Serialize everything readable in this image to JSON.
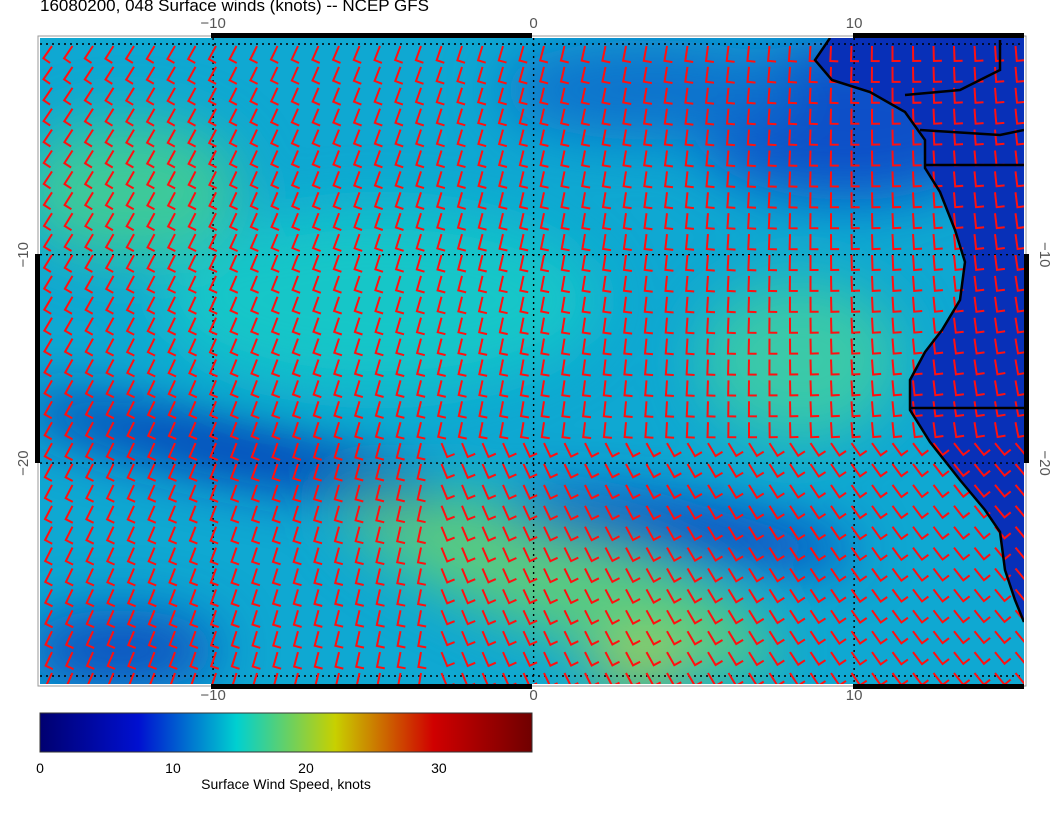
{
  "title": "16080200, 048 Surface winds (knots) -- NCEP GFS",
  "chart_data": {
    "type": "heatmap",
    "variable": "Surface wind speed with wind barbs",
    "x_ticks": [
      "−10",
      "0",
      "10"
    ],
    "x_tick_values": [
      -10,
      0,
      10
    ],
    "y_ticks": [
      "−10",
      "−20"
    ],
    "y_tick_values": [
      -10,
      -20
    ],
    "xlim": [
      -15.4,
      15.3
    ],
    "ylim": [
      -30.6,
      0.4
    ],
    "grid": true,
    "colorbar": {
      "label": "Surface Wind Speed, knots",
      "ticks": [
        "0",
        "10",
        "20",
        "30"
      ],
      "tick_values": [
        0,
        10,
        20,
        30
      ],
      "range": [
        0,
        37
      ],
      "colors": [
        "#000070",
        "#0010d0",
        "#00d0d0",
        "#c8d000",
        "#d00000",
        "#700000"
      ]
    },
    "barb_color": "#ff0000",
    "coastline_color": "#000000"
  }
}
